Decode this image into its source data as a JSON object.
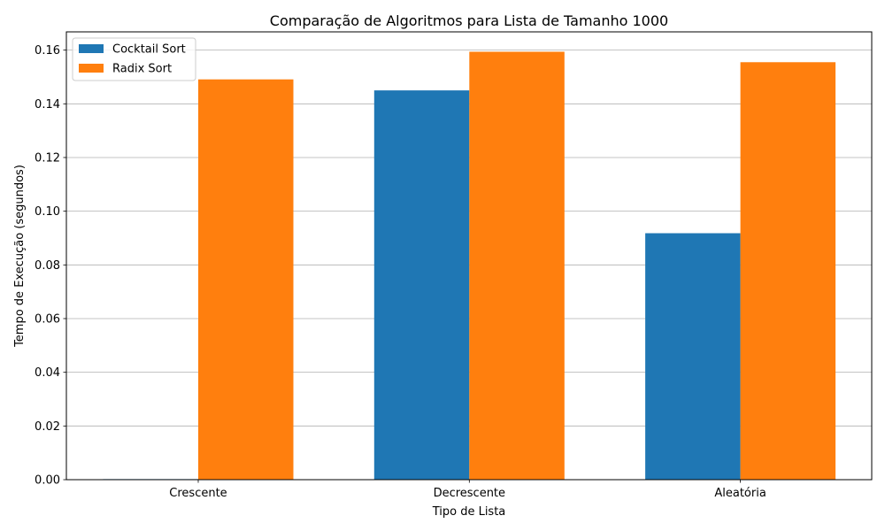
{
  "chart_data": {
    "type": "bar",
    "title": "Comparação de Algoritmos para Lista de Tamanho 1000",
    "xlabel": "Tipo de Lista",
    "ylabel": "Tempo de Execução (segundos)",
    "categories": [
      "Crescente",
      "Decrescente",
      "Aleatória"
    ],
    "series": [
      {
        "name": "Cocktail Sort",
        "color": "#1f77b4",
        "values": [
          0.0002,
          0.145,
          0.0918
        ]
      },
      {
        "name": "Radix Sort",
        "color": "#ff7f0e",
        "values": [
          0.1491,
          0.1594,
          0.1555
        ]
      }
    ],
    "ylim": [
      0,
      0.1668
    ],
    "yticks": [
      0.0,
      0.02,
      0.04,
      0.06,
      0.08,
      0.1,
      0.12,
      0.14,
      0.16
    ],
    "ytick_labels": [
      "0.00",
      "0.02",
      "0.04",
      "0.06",
      "0.08",
      "0.10",
      "0.12",
      "0.14",
      "0.16"
    ],
    "grid": "y-major",
    "legend_position": "top-left"
  }
}
